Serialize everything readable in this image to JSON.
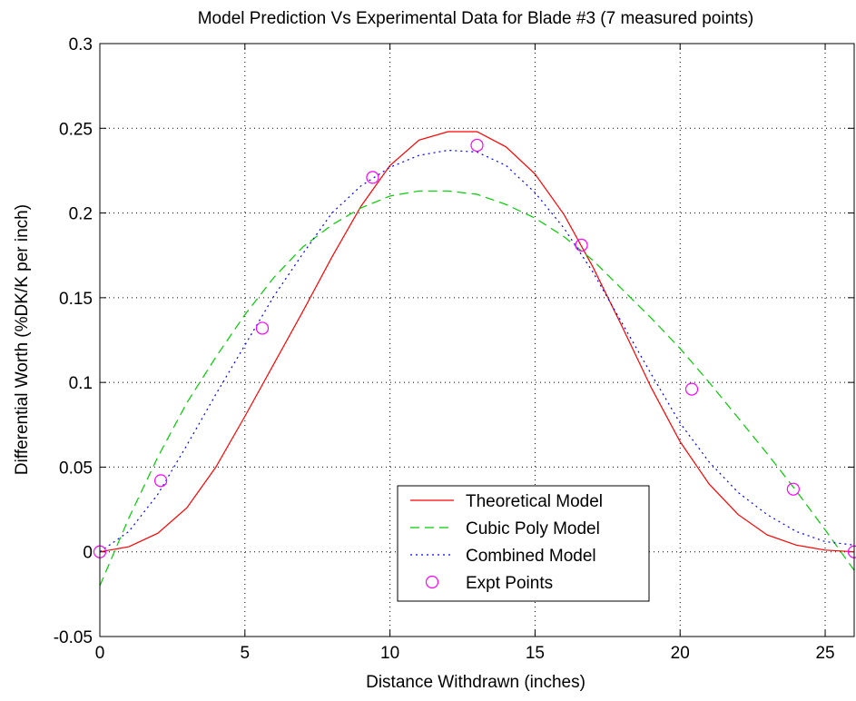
{
  "chart_data": {
    "type": "line",
    "title": "Model Prediction Vs Experimental Data for Blade #3 (7 measured points)",
    "xlabel": "Distance Withdrawn (inches)",
    "ylabel": "Differential Worth (%DK/K per inch)",
    "xlim": [
      0,
      26
    ],
    "ylim": [
      -0.05,
      0.3
    ],
    "xticks": [
      0,
      5,
      10,
      15,
      20,
      25
    ],
    "xtick_labels": [
      "0",
      "5",
      "10",
      "15",
      "20",
      "25"
    ],
    "yticks": [
      -0.05,
      0,
      0.05,
      0.1,
      0.15,
      0.2,
      0.25,
      0.3
    ],
    "ytick_labels": [
      "-0.05",
      "0",
      "0.05",
      "0.1",
      "0.15",
      "0.2",
      "0.25",
      "0.3"
    ],
    "grid": true,
    "legend_position": "bottom-center",
    "series": [
      {
        "name": "Theoretical Model",
        "style": "solid",
        "color": "#ff0000",
        "x": [
          0,
          1,
          2,
          3,
          4,
          5,
          6,
          7,
          8,
          9,
          10,
          11,
          12,
          13,
          14,
          15,
          16,
          17,
          18,
          19,
          20,
          21,
          22,
          23,
          24,
          25,
          26
        ],
        "y": [
          0.0,
          0.003,
          0.011,
          0.026,
          0.05,
          0.08,
          0.111,
          0.142,
          0.174,
          0.204,
          0.228,
          0.243,
          0.248,
          0.248,
          0.239,
          0.223,
          0.199,
          0.168,
          0.133,
          0.097,
          0.065,
          0.04,
          0.022,
          0.01,
          0.004,
          0.001,
          0.0
        ]
      },
      {
        "name": "Cubic Poly Model",
        "style": "dashed",
        "color": "#00cc00",
        "x": [
          0,
          1,
          2,
          3,
          4,
          5,
          6,
          7,
          8,
          9,
          10,
          11,
          12,
          13,
          14,
          15,
          16,
          17,
          18,
          19,
          20,
          21,
          22,
          23,
          24,
          25,
          26
        ],
        "y": [
          -0.02,
          0.02,
          0.056,
          0.088,
          0.115,
          0.14,
          0.162,
          0.18,
          0.193,
          0.203,
          0.21,
          0.213,
          0.213,
          0.211,
          0.205,
          0.197,
          0.186,
          0.172,
          0.155,
          0.138,
          0.12,
          0.1,
          0.079,
          0.058,
          0.036,
          0.013,
          -0.011
        ]
      },
      {
        "name": "Combined Model",
        "style": "dotted",
        "color": "#0000ff",
        "x": [
          0,
          1,
          2,
          3,
          4,
          5,
          6,
          7,
          8,
          9,
          10,
          11,
          12,
          13,
          14,
          15,
          16,
          17,
          18,
          19,
          20,
          21,
          22,
          23,
          24,
          25,
          26
        ],
        "y": [
          0.0,
          0.012,
          0.034,
          0.063,
          0.093,
          0.122,
          0.151,
          0.176,
          0.2,
          0.216,
          0.227,
          0.234,
          0.237,
          0.236,
          0.228,
          0.212,
          0.191,
          0.165,
          0.135,
          0.105,
          0.076,
          0.053,
          0.035,
          0.022,
          0.012,
          0.006,
          0.004
        ]
      },
      {
        "name": "Expt Points",
        "style": "markers",
        "marker": "circle",
        "color": "#ff00ff",
        "x": [
          0,
          2.1,
          5.6,
          9.4,
          13.0,
          16.6,
          20.4,
          23.9,
          26.0
        ],
        "y": [
          0.0,
          0.042,
          0.132,
          0.221,
          0.24,
          0.181,
          0.096,
          0.037,
          0.0
        ]
      }
    ]
  }
}
